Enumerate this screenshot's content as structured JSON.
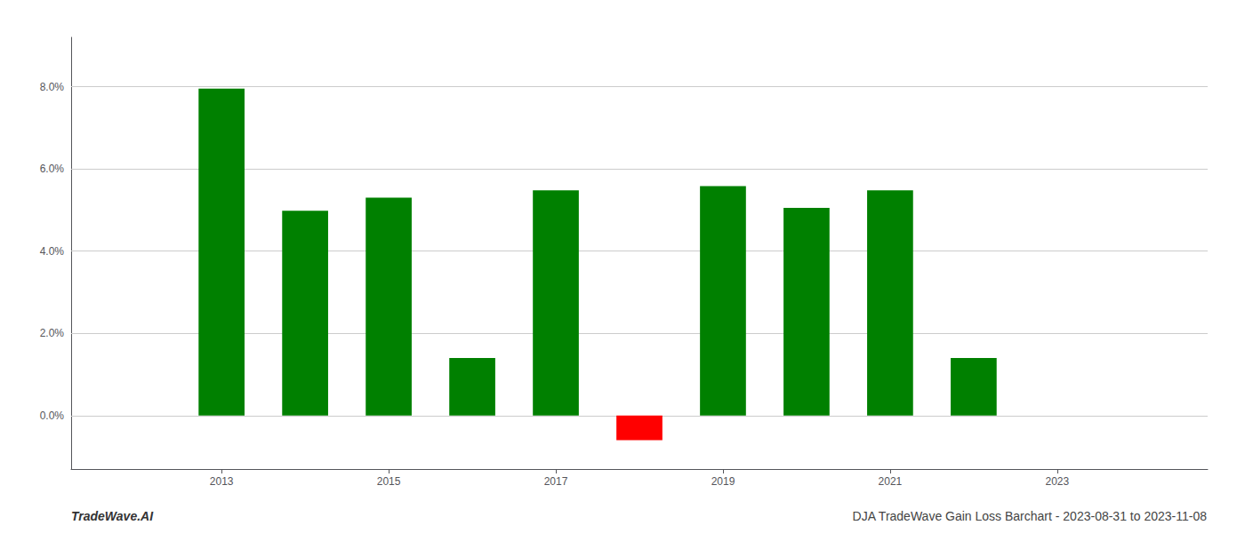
{
  "chart_data": {
    "type": "bar",
    "x": [
      2013,
      2014,
      2015,
      2016,
      2017,
      2018,
      2019,
      2020,
      2021,
      2022
    ],
    "values": [
      0.0795,
      0.0498,
      0.053,
      0.014,
      0.0548,
      -0.006,
      0.0558,
      0.0505,
      0.0548,
      0.014
    ],
    "colors": [
      "#008000",
      "#008000",
      "#008000",
      "#008000",
      "#008000",
      "#ff0000",
      "#008000",
      "#008000",
      "#008000",
      "#008000"
    ],
    "xlim": [
      2011.2,
      2024.8
    ],
    "xticks": [
      2013,
      2015,
      2017,
      2019,
      2021,
      2023
    ],
    "ylim": [
      -0.013,
      0.092
    ],
    "yticks": [
      {
        "value": 0.0,
        "label": "0.0%"
      },
      {
        "value": 0.02,
        "label": "2.0%"
      },
      {
        "value": 0.04,
        "label": "4.0%"
      },
      {
        "value": 0.06,
        "label": "6.0%"
      },
      {
        "value": 0.08,
        "label": "8.0%"
      }
    ],
    "grid": true,
    "annotations": [
      "TradeWave.AI",
      "DJA TradeWave Gain Loss Barchart - 2023-08-31 to 2023-11-08"
    ]
  }
}
